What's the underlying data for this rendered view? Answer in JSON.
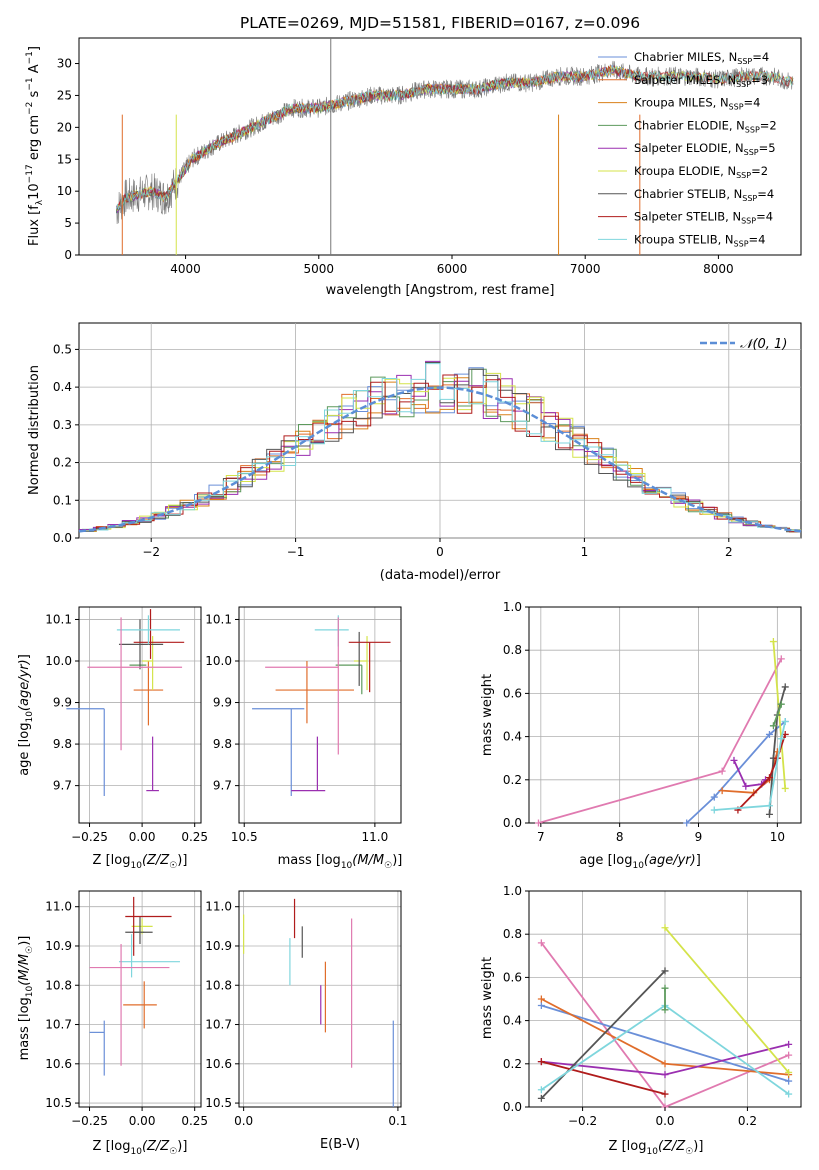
{
  "figure_title": "PLATE=0269, MJD=51581, FIBERID=0167, z=0.096",
  "colors": {
    "Chabrier MILES": "#6a8fd8",
    "Salpeter MILES": "#e06d2b",
    "Kroupa MILES": "#d9801a",
    "Chabrier ELODIE": "#5d9a5d",
    "Salpeter ELODIE": "#9a2fb0",
    "Kroupa ELODIE": "#d4e34a",
    "Chabrier STELIB": "#555555",
    "Salpeter STELIB": "#b01c1c",
    "Kroupa STELIB": "#7fd6dd",
    "pink": "#e07ab0"
  },
  "chart_data": [
    {
      "id": "spectrum",
      "type": "line",
      "xlabel": "wavelength [Angstrom, rest frame]",
      "ylabel": "Flux [f",
      "xlim": [
        3200,
        8620
      ],
      "ylim": [
        0,
        34
      ],
      "xticks": [
        4000,
        5000,
        6000,
        7000,
        8000
      ],
      "yticks": [
        0,
        5,
        10,
        15,
        20,
        25,
        30
      ],
      "legend": [
        {
          "label": "Chabrier MILES, N",
          "n": "=4",
          "color": "#6a8fd8"
        },
        {
          "label": "Salpeter MILES, N",
          "n": "=3",
          "color": "#e06d2b"
        },
        {
          "label": "Kroupa MILES, N",
          "n": "=4",
          "color": "#d9801a"
        },
        {
          "label": "Chabrier ELODIE, N",
          "n": "=2",
          "color": "#5d9a5d"
        },
        {
          "label": "Salpeter ELODIE, N",
          "n": "=5",
          "color": "#9a2fb0"
        },
        {
          "label": "Kroupa ELODIE, N",
          "n": "=2",
          "color": "#d4e34a"
        },
        {
          "label": "Chabrier STELIB, N",
          "n": "=4",
          "color": "#555555"
        },
        {
          "label": "Salpeter STELIB, N",
          "n": "=4",
          "color": "#b01c1c"
        },
        {
          "label": "Kroupa STELIB, N",
          "n": "=4",
          "color": "#7fd6dd"
        }
      ],
      "continuum": [
        [
          3480,
          7
        ],
        [
          3550,
          9
        ],
        [
          3650,
          9.5
        ],
        [
          3750,
          10
        ],
        [
          3850,
          9
        ],
        [
          3950,
          12
        ],
        [
          4050,
          15
        ],
        [
          4200,
          17
        ],
        [
          4400,
          19
        ],
        [
          4600,
          21
        ],
        [
          4800,
          23
        ],
        [
          5000,
          23
        ],
        [
          5200,
          24
        ],
        [
          5400,
          25
        ],
        [
          5600,
          25
        ],
        [
          5800,
          26
        ],
        [
          6000,
          26
        ],
        [
          6200,
          26
        ],
        [
          6400,
          27
        ],
        [
          6600,
          27
        ],
        [
          6800,
          28
        ],
        [
          7000,
          28
        ],
        [
          7200,
          29
        ],
        [
          7400,
          28
        ],
        [
          7600,
          28
        ],
        [
          7800,
          28
        ],
        [
          8000,
          27.5
        ],
        [
          8200,
          28
        ],
        [
          8400,
          28
        ],
        [
          8560,
          27
        ]
      ]
    },
    {
      "id": "residuals",
      "type": "bar",
      "xlabel": "(data-model)/error",
      "ylabel": "Normed distribution",
      "xlim": [
        -2.5,
        2.5
      ],
      "ylim": [
        0,
        0.57
      ],
      "xticks": [
        -2,
        -1,
        0,
        1,
        2
      ],
      "yticks": [
        0.0,
        0.1,
        0.2,
        0.3,
        0.4,
        0.5
      ],
      "legend": "top-right",
      "gaussian_label": "𝒩(0, 1)",
      "grid": true
    },
    {
      "id": "age-vs-Z",
      "type": "scatter",
      "xlabel": "Z [log",
      "ylabel": "age  [log",
      "xlim": [
        -0.3,
        0.28
      ],
      "ylim": [
        9.61,
        10.13
      ],
      "xticks": [
        -0.25,
        0.0,
        0.25
      ],
      "yticks": [
        9.7,
        9.8,
        9.9,
        10.0,
        10.1
      ],
      "points": [
        {
          "x": -0.18,
          "y": 9.885,
          "xerr": [
            0.18,
            0.0
          ],
          "yerr": [
            0.21,
            0.0
          ],
          "color": "#6a8fd8"
        },
        {
          "x": 0.03,
          "y": 9.93,
          "xerr": [
            0.07,
            0.07
          ],
          "yerr": [
            0.085,
            0.07
          ],
          "color": "#e06d2b"
        },
        {
          "x": 0.02,
          "y": 9.99,
          "xerr": [
            0.08,
            0.0
          ],
          "yerr": [
            0.0,
            0.0
          ],
          "color": "#5d9a5d"
        },
        {
          "x": 0.05,
          "y": 9.688,
          "xerr": [
            0.03,
            0.03
          ],
          "yerr": [
            0.0,
            0.13
          ],
          "color": "#9a2fb0"
        },
        {
          "x": 0.05,
          "y": 10.0,
          "xerr": [
            0.05,
            0.0
          ],
          "yerr": [
            0.07,
            0.06
          ],
          "color": "#d4e34a"
        },
        {
          "x": -0.01,
          "y": 10.04,
          "xerr": [
            0.1,
            0.11
          ],
          "yerr": [
            0.06,
            0.06
          ],
          "color": "#555555"
        },
        {
          "x": 0.04,
          "y": 10.045,
          "xerr": [
            0.08,
            0.16
          ],
          "yerr": [
            0.04,
            0.08
          ],
          "color": "#b01c1c"
        },
        {
          "x": 0.03,
          "y": 10.075,
          "xerr": [
            0.15,
            0.15
          ],
          "yerr": [
            0.035,
            0.035
          ],
          "color": "#7fd6dd"
        },
        {
          "x": -0.1,
          "y": 9.985,
          "xerr": [
            0.16,
            0.29
          ],
          "yerr": [
            0.2,
            0.12
          ],
          "color": "#e07ab0"
        }
      ]
    },
    {
      "id": "age-vs-mass",
      "type": "scatter",
      "xlabel": "mass [log",
      "xlim": [
        10.48,
        11.1
      ],
      "ylim": [
        9.61,
        10.13
      ],
      "xticks": [
        10.5,
        11.0
      ],
      "yticks": [
        9.7,
        9.8,
        9.9,
        10.0,
        10.1
      ],
      "points": [
        {
          "x": 10.68,
          "y": 9.885,
          "xerr": [
            0.15,
            0.05
          ],
          "yerr": [
            0.21,
            0.0
          ],
          "color": "#6a8fd8"
        },
        {
          "x": 10.74,
          "y": 9.93,
          "xerr": [
            0.12,
            0.18
          ],
          "yerr": [
            0.08,
            0.07
          ],
          "color": "#e06d2b"
        },
        {
          "x": 10.95,
          "y": 9.99,
          "xerr": [
            0.1,
            0.0
          ],
          "yerr": [
            0.07,
            0.0
          ],
          "color": "#5d9a5d"
        },
        {
          "x": 10.78,
          "y": 9.688,
          "xerr": [
            0.1,
            0.03
          ],
          "yerr": [
            0.0,
            0.13
          ],
          "color": "#9a2fb0"
        },
        {
          "x": 10.97,
          "y": 10.0,
          "xerr": [
            0.05,
            0.0
          ],
          "yerr": [
            0.07,
            0.06
          ],
          "color": "#d4e34a"
        },
        {
          "x": 10.94,
          "y": 10.04,
          "xerr": [
            0.0,
            0.0
          ],
          "yerr": [
            0.1,
            0.03
          ],
          "color": "#555555"
        },
        {
          "x": 10.98,
          "y": 10.045,
          "xerr": [
            0.08,
            0.08
          ],
          "yerr": [
            0.12,
            0.0
          ],
          "color": "#b01c1c"
        },
        {
          "x": 10.86,
          "y": 10.075,
          "xerr": [
            0.09,
            0.04
          ],
          "yerr": [
            0.04,
            0.035
          ],
          "color": "#7fd6dd"
        },
        {
          "x": 10.86,
          "y": 9.985,
          "xerr": [
            0.28,
            0.0
          ],
          "yerr": [
            0.21,
            0.12
          ],
          "color": "#e07ab0"
        }
      ]
    },
    {
      "id": "weight-vs-age",
      "type": "line",
      "xlabel": "age  [log",
      "ylabel": "mass weight",
      "xlim": [
        6.85,
        10.3
      ],
      "ylim": [
        0.0,
        1.0
      ],
      "xticks": [
        7,
        8,
        9,
        10
      ],
      "yticks": [
        0.0,
        0.2,
        0.4,
        0.6,
        0.8,
        1.0
      ],
      "grid": true,
      "series": [
        {
          "color": "#e07ab0",
          "points": [
            [
              6.97,
              0.0
            ],
            [
              9.3,
              0.24
            ],
            [
              10.05,
              0.76
            ]
          ]
        },
        {
          "color": "#6a8fd8",
          "points": [
            [
              8.85,
              0.0
            ],
            [
              9.2,
              0.12
            ],
            [
              9.9,
              0.41
            ],
            [
              10.1,
              0.47
            ]
          ]
        },
        {
          "color": "#e06d2b",
          "points": [
            [
              9.3,
              0.15
            ],
            [
              9.7,
              0.14
            ],
            [
              9.9,
              0.2
            ],
            [
              10.0,
              0.33
            ]
          ]
        },
        {
          "color": "#9a2fb0",
          "points": [
            [
              9.45,
              0.29
            ],
            [
              9.6,
              0.17
            ],
            [
              9.8,
              0.18
            ],
            [
              9.85,
              0.2
            ]
          ]
        },
        {
          "color": "#d4e34a",
          "points": [
            [
              9.95,
              0.84
            ],
            [
              10.1,
              0.16
            ]
          ]
        },
        {
          "color": "#555555",
          "points": [
            [
              9.9,
              0.04
            ],
            [
              9.95,
              0.3
            ],
            [
              10.0,
              0.5
            ],
            [
              10.1,
              0.63
            ]
          ]
        },
        {
          "color": "#b01c1c",
          "points": [
            [
              9.5,
              0.06
            ],
            [
              9.9,
              0.21
            ],
            [
              10.0,
              0.3
            ],
            [
              10.1,
              0.41
            ]
          ]
        },
        {
          "color": "#7fd6dd",
          "points": [
            [
              9.2,
              0.06
            ],
            [
              9.9,
              0.08
            ],
            [
              10.05,
              0.39
            ],
            [
              10.1,
              0.47
            ]
          ]
        },
        {
          "color": "#5d9a5d",
          "points": [
            [
              9.95,
              0.45
            ],
            [
              10.05,
              0.55
            ]
          ]
        }
      ]
    },
    {
      "id": "mass-vs-Z",
      "type": "scatter",
      "xlabel": "Z [log",
      "ylabel": "mass [log",
      "xlim": [
        -0.3,
        0.28
      ],
      "ylim": [
        10.49,
        11.04
      ],
      "xticks": [
        -0.25,
        0.0,
        0.25
      ],
      "yticks": [
        10.5,
        10.6,
        10.7,
        10.8,
        10.9,
        11.0
      ],
      "points": [
        {
          "x": -0.18,
          "y": 10.68,
          "xerr": [
            0.07,
            0.0
          ],
          "yerr": [
            0.11,
            0.03
          ],
          "color": "#6a8fd8"
        },
        {
          "x": 0.01,
          "y": 10.75,
          "xerr": [
            0.1,
            0.06
          ],
          "yerr": [
            0.06,
            0.06
          ],
          "color": "#e06d2b"
        },
        {
          "x": 0.01,
          "y": 10.935,
          "xerr": [
            0.05,
            0.0
          ],
          "yerr": [
            0.0,
            0.0
          ],
          "color": "#5d9a5d"
        },
        {
          "x": 0.0,
          "y": 10.95,
          "xerr": [
            0.05,
            0.05
          ],
          "yerr": [
            0.02,
            0.02
          ],
          "color": "#d4e34a"
        },
        {
          "x": -0.01,
          "y": 10.935,
          "xerr": [
            0.07,
            0.06
          ],
          "yerr": [
            0.03,
            0.04
          ],
          "color": "#555555"
        },
        {
          "x": -0.04,
          "y": 10.975,
          "xerr": [
            0.04,
            0.18
          ],
          "yerr": [
            0.1,
            0.05
          ],
          "color": "#b01c1c"
        },
        {
          "x": -0.05,
          "y": 10.86,
          "xerr": [
            0.06,
            0.23
          ],
          "yerr": [
            0.04,
            0.07
          ],
          "color": "#7fd6dd"
        },
        {
          "x": -0.1,
          "y": 10.845,
          "xerr": [
            0.15,
            0.23
          ],
          "yerr": [
            0.25,
            0.06
          ],
          "color": "#e07ab0"
        }
      ]
    },
    {
      "id": "mass-vs-ebv",
      "type": "scatter",
      "xlabel": "E(B-V)",
      "xlim": [
        -0.003,
        0.102
      ],
      "ylim": [
        10.49,
        11.04
      ],
      "xticks": [
        0.0,
        0.1
      ],
      "yticks": [
        10.5,
        10.6,
        10.7,
        10.8,
        10.9,
        11.0
      ],
      "points": [
        {
          "x": 0.0,
          "y": 10.93,
          "xerr": [
            0,
            0
          ],
          "yerr": [
            0.05,
            0.05
          ],
          "color": "#d4e34a"
        },
        {
          "x": 0.03,
          "y": 10.86,
          "xerr": [
            0,
            0
          ],
          "yerr": [
            0.06,
            0.06
          ],
          "color": "#7fd6dd"
        },
        {
          "x": 0.033,
          "y": 10.97,
          "xerr": [
            0,
            0
          ],
          "yerr": [
            0.05,
            0.05
          ],
          "color": "#b01c1c"
        },
        {
          "x": 0.038,
          "y": 10.91,
          "xerr": [
            0,
            0
          ],
          "yerr": [
            0.04,
            0.04
          ],
          "color": "#555555"
        },
        {
          "x": 0.05,
          "y": 10.75,
          "xerr": [
            0,
            0
          ],
          "yerr": [
            0.05,
            0.05
          ],
          "color": "#9a2fb0"
        },
        {
          "x": 0.053,
          "y": 10.77,
          "xerr": [
            0,
            0
          ],
          "yerr": [
            0.09,
            0.09
          ],
          "color": "#e06d2b"
        },
        {
          "x": 0.07,
          "y": 10.78,
          "xerr": [
            0,
            0
          ],
          "yerr": [
            0.19,
            0.19
          ],
          "color": "#e07ab0"
        },
        {
          "x": 0.097,
          "y": 10.6,
          "xerr": [
            0,
            0
          ],
          "yerr": [
            0.11,
            0.11
          ],
          "color": "#6a8fd8"
        }
      ]
    },
    {
      "id": "weight-vs-Z",
      "type": "line",
      "xlabel": "Z [log",
      "ylabel": "mass weight",
      "xlim": [
        -0.33,
        0.33
      ],
      "ylim": [
        0.0,
        1.0
      ],
      "xticks": [
        -0.2,
        0.0,
        0.2
      ],
      "yticks": [
        0.0,
        0.2,
        0.4,
        0.6,
        0.8,
        1.0
      ],
      "grid": true,
      "series": [
        {
          "color": "#e07ab0",
          "points": [
            [
              -0.3,
              0.76
            ],
            [
              0.0,
              0.0
            ],
            [
              0.3,
              0.24
            ]
          ]
        },
        {
          "color": "#6a8fd8",
          "points": [
            [
              -0.3,
              0.47
            ],
            [
              0.3,
              0.12
            ]
          ]
        },
        {
          "color": "#e06d2b",
          "points": [
            [
              -0.3,
              0.5
            ],
            [
              0.0,
              0.2
            ],
            [
              0.3,
              0.15
            ]
          ]
        },
        {
          "color": "#9a2fb0",
          "points": [
            [
              -0.3,
              0.21
            ],
            [
              0.0,
              0.15
            ],
            [
              0.3,
              0.29
            ]
          ]
        },
        {
          "color": "#d4e34a",
          "points": [
            [
              0.0,
              0.83
            ],
            [
              0.3,
              0.16
            ]
          ]
        },
        {
          "color": "#555555",
          "points": [
            [
              -0.3,
              0.04
            ],
            [
              0.0,
              0.63
            ]
          ]
        },
        {
          "color": "#b01c1c",
          "points": [
            [
              -0.3,
              0.21
            ],
            [
              0.0,
              0.06
            ]
          ]
        },
        {
          "color": "#7fd6dd",
          "points": [
            [
              -0.3,
              0.08
            ],
            [
              0.0,
              0.47
            ],
            [
              0.3,
              0.06
            ]
          ]
        },
        {
          "color": "#5d9a5d",
          "points": [
            [
              0.0,
              0.55
            ],
            [
              0.0,
              0.45
            ]
          ]
        }
      ]
    }
  ]
}
